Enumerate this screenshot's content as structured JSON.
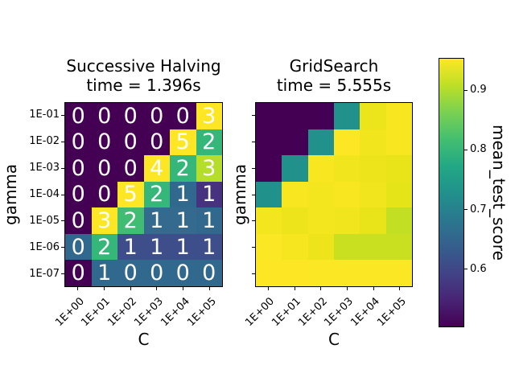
{
  "chart_data": [
    {
      "type": "heatmap",
      "name": "successive_halving",
      "title": "Successive Halving",
      "subtitle": "time = 1.396s",
      "xlabel": "C",
      "ylabel": "gamma",
      "x_ticklabels": [
        "1E+00",
        "1E+01",
        "1E+02",
        "1E+03",
        "1E+04",
        "1E+05"
      ],
      "y_ticklabels": [
        "1E-01",
        "1E-02",
        "1E-03",
        "1E-04",
        "1E-05",
        "1E-06",
        "1E-07"
      ],
      "show_y_ticklabels": true,
      "annotation_meaning": "iteration number shown in each cell",
      "annotations": [
        [
          0,
          0,
          0,
          0,
          0,
          3
        ],
        [
          0,
          0,
          0,
          0,
          5,
          2
        ],
        [
          0,
          0,
          0,
          4,
          2,
          3
        ],
        [
          0,
          0,
          5,
          2,
          1,
          1
        ],
        [
          0,
          3,
          2,
          1,
          1,
          1
        ],
        [
          0,
          2,
          1,
          1,
          1,
          1
        ],
        [
          0,
          1,
          0,
          0,
          0,
          0
        ]
      ],
      "annotation_color": "#ffffff",
      "cell_colors": [
        [
          "#440154",
          "#440154",
          "#440154",
          "#440154",
          "#440154",
          "#fde725"
        ],
        [
          "#440154",
          "#440154",
          "#440154",
          "#440154",
          "#fde725",
          "#35b779"
        ],
        [
          "#440154",
          "#440154",
          "#440154",
          "#fde725",
          "#35b779",
          "#b5de2b"
        ],
        [
          "#440154",
          "#440154",
          "#fde725",
          "#35b779",
          "#31688e",
          "#46327e"
        ],
        [
          "#440154",
          "#fde725",
          "#40bd72",
          "#336a8e",
          "#336a8e",
          "#31688e"
        ],
        [
          "#31688e",
          "#35b779",
          "#3d4e8a",
          "#3d4e8a",
          "#3d4e8a",
          "#3d4e8a"
        ],
        [
          "#440154",
          "#31688e",
          "#31688e",
          "#31688e",
          "#31688e",
          "#31688e"
        ]
      ]
    },
    {
      "type": "heatmap",
      "name": "gridsearch",
      "title": "GridSearch",
      "subtitle": "time = 5.555s",
      "xlabel": "C",
      "ylabel": "gamma",
      "x_ticklabels": [
        "1E+00",
        "1E+01",
        "1E+02",
        "1E+03",
        "1E+04",
        "1E+05"
      ],
      "y_ticklabels": [
        "1E-01",
        "1E-02",
        "1E-03",
        "1E-04",
        "1E-05",
        "1E-06",
        "1E-07"
      ],
      "show_y_ticklabels": false,
      "annotations": null,
      "annotation_color": "#ffffff",
      "cell_colors": [
        [
          "#440154",
          "#440154",
          "#440154",
          "#21918c",
          "#ece51b",
          "#f8e621"
        ],
        [
          "#440154",
          "#440154",
          "#21918c",
          "#fde725",
          "#f1e51d",
          "#f8e621"
        ],
        [
          "#440154",
          "#21918c",
          "#f8e621",
          "#f1e51d",
          "#eee41c",
          "#e8e419"
        ],
        [
          "#21918c",
          "#f8e621",
          "#f4e61e",
          "#f8e621",
          "#f1e51d",
          "#e4e419"
        ],
        [
          "#f4e61e",
          "#eee41c",
          "#f4e61e",
          "#f1e51d",
          "#e8e419",
          "#c2df23"
        ],
        [
          "#fbe723",
          "#f6e620",
          "#eee41c",
          "#c8e020",
          "#c8e020",
          "#c8e020"
        ],
        [
          "#fde725",
          "#fde725",
          "#fbe723",
          "#fbe723",
          "#fbe723",
          "#fbe723"
        ]
      ]
    }
  ],
  "colorbar": {
    "label": "mean_test_score",
    "colormap": "viridis",
    "tick_labels": [
      "0.9",
      "0.8",
      "0.7",
      "0.6"
    ],
    "tick_values": [
      0.9,
      0.8,
      0.7,
      0.6
    ],
    "vmin": 0.503,
    "vmax": 0.954,
    "gradient_top_to_bottom": [
      "#fde725",
      "#bddf26",
      "#7ad151",
      "#44bf70",
      "#22a884",
      "#21918c",
      "#2a788e",
      "#355f8d",
      "#414487",
      "#482475",
      "#440154"
    ]
  }
}
